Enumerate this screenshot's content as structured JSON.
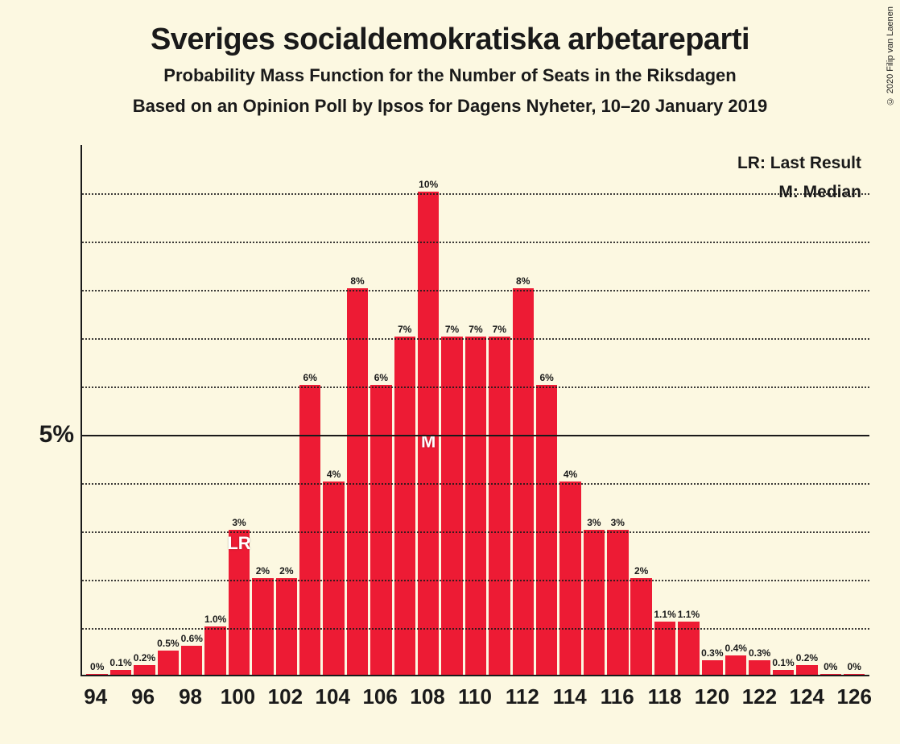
{
  "copyright": "© 2020 Filip van Laenen",
  "titles": {
    "main": "Sveriges socialdemokratiska arbetareparti",
    "sub1": "Probability Mass Function for the Number of Seats in the Riksdagen",
    "sub2": "Based on an Opinion Poll by Ipsos for Dagens Nyheter, 10–20 January 2019"
  },
  "legend": {
    "lr": "LR: Last Result",
    "m": "M: Median"
  },
  "chart": {
    "type": "bar",
    "bar_color": "#ed1b34",
    "background_color": "#fcf8e1",
    "grid_color": "#1a1a1a",
    "text_color": "#1a1a1a",
    "marker_text_color": "#ffffff",
    "ylim_max": 11,
    "y_major": {
      "value": 5,
      "label": "5%"
    },
    "y_gridlines": [
      1,
      2,
      3,
      4,
      6,
      7,
      8,
      9,
      10
    ],
    "bars": [
      {
        "x": 94,
        "v": 0,
        "label": "0%"
      },
      {
        "x": 95,
        "v": 0.1,
        "label": "0.1%"
      },
      {
        "x": 96,
        "v": 0.2,
        "label": "0.2%"
      },
      {
        "x": 97,
        "v": 0.5,
        "label": "0.5%"
      },
      {
        "x": 98,
        "v": 0.6,
        "label": "0.6%"
      },
      {
        "x": 99,
        "v": 1.0,
        "label": "1.0%"
      },
      {
        "x": 100,
        "v": 3,
        "label": "3%",
        "marker": "LR",
        "marker_pos": "top"
      },
      {
        "x": 101,
        "v": 2,
        "label": "2%"
      },
      {
        "x": 102,
        "v": 2,
        "label": "2%"
      },
      {
        "x": 103,
        "v": 6,
        "label": "6%"
      },
      {
        "x": 104,
        "v": 4,
        "label": "4%"
      },
      {
        "x": 105,
        "v": 8,
        "label": "8%"
      },
      {
        "x": 106,
        "v": 6,
        "label": "6%"
      },
      {
        "x": 107,
        "v": 7,
        "label": "7%"
      },
      {
        "x": 108,
        "v": 10,
        "label": "10%",
        "marker": "M",
        "marker_pos": "mid"
      },
      {
        "x": 109,
        "v": 7,
        "label": "7%"
      },
      {
        "x": 110,
        "v": 7,
        "label": "7%"
      },
      {
        "x": 111,
        "v": 7,
        "label": "7%"
      },
      {
        "x": 112,
        "v": 8,
        "label": "8%"
      },
      {
        "x": 113,
        "v": 6,
        "label": "6%"
      },
      {
        "x": 114,
        "v": 4,
        "label": "4%"
      },
      {
        "x": 115,
        "v": 3,
        "label": "3%"
      },
      {
        "x": 116,
        "v": 3,
        "label": "3%"
      },
      {
        "x": 117,
        "v": 2,
        "label": "2%"
      },
      {
        "x": 118,
        "v": 1.1,
        "label": "1.1%"
      },
      {
        "x": 119,
        "v": 1.1,
        "label": "1.1%"
      },
      {
        "x": 120,
        "v": 0.3,
        "label": "0.3%"
      },
      {
        "x": 121,
        "v": 0.4,
        "label": "0.4%"
      },
      {
        "x": 122,
        "v": 0.3,
        "label": "0.3%"
      },
      {
        "x": 123,
        "v": 0.1,
        "label": "0.1%"
      },
      {
        "x": 124,
        "v": 0.2,
        "label": "0.2%"
      },
      {
        "x": 125,
        "v": 0,
        "label": "0%"
      },
      {
        "x": 126,
        "v": 0,
        "label": "0%"
      }
    ],
    "x_ticks": [
      94,
      96,
      98,
      100,
      102,
      104,
      106,
      108,
      110,
      112,
      114,
      116,
      118,
      120,
      122,
      124,
      126
    ],
    "title_fontsize": 38,
    "subtitle_fontsize": 22,
    "xtick_fontsize": 26,
    "ytick_fontsize": 30,
    "barlabel_fontsize": 12,
    "legend_fontsize": 21
  }
}
